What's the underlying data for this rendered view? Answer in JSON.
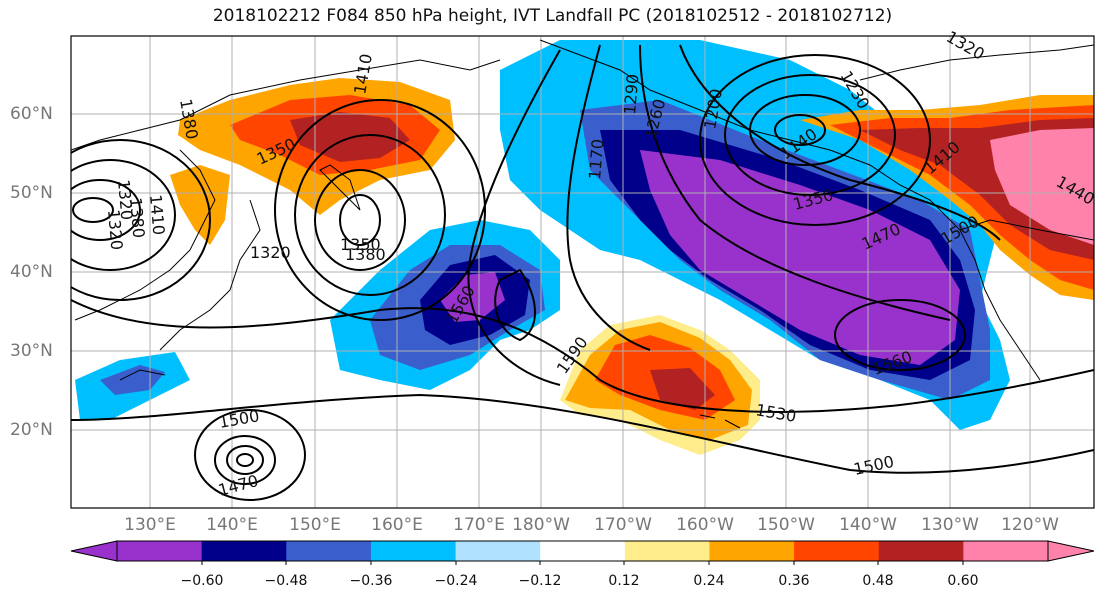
{
  "title": "2018102212 F084 850 hPa height, IVT Landfall PC (2018102512 - 2018102712)",
  "lat_labels": [
    "60°N",
    "50°N",
    "40°N",
    "30°N",
    "20°N"
  ],
  "lon_labels": [
    "130°E",
    "140°E",
    "150°E",
    "160°E",
    "170°E",
    "180°W",
    "170°W",
    "160°W",
    "150°W",
    "140°W",
    "130°W",
    "120°W"
  ],
  "contour_labels": [
    "1320",
    "1410",
    "1380",
    "1350",
    "1290",
    "1230",
    "1260",
    "1140",
    "1200",
    "1350",
    "1170",
    "1410",
    "1440",
    "1320",
    "1410",
    "1320",
    "1380",
    "1380",
    "1350",
    "1320",
    "1560",
    "1590",
    "1470",
    "1500",
    "1560",
    "1530",
    "1500",
    "1500",
    "1470"
  ],
  "colorbar": {
    "ticks": [
      "−0.60",
      "−0.48",
      "−0.36",
      "−0.24",
      "−0.12",
      "0.12",
      "0.24",
      "0.36",
      "0.48",
      "0.60"
    ],
    "colors": [
      "#9932cc",
      "#00008b",
      "#3a5fcd",
      "#00bfff",
      "#b0e2ff",
      "#ffffff",
      "#ffec8b",
      "#ffa500",
      "#ff4500",
      "#b22222",
      "#ff82ab"
    ]
  }
}
